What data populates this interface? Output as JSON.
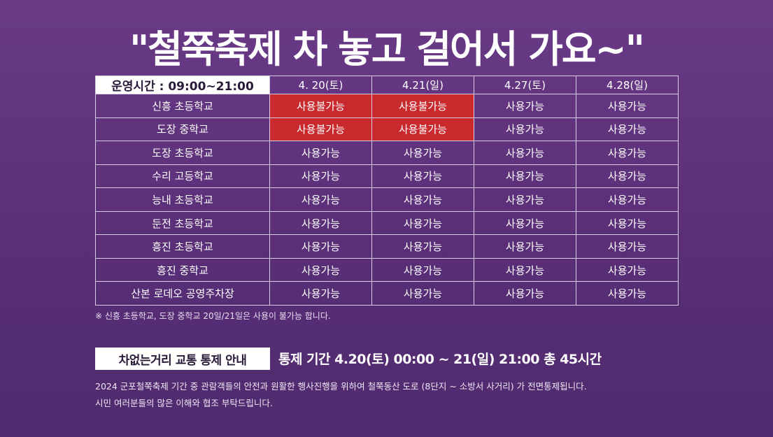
{
  "title": "\"철쭉축제 차 놓고 걸어서 가요~\"",
  "schedule": {
    "corner_label": "운영시간 : 09:00~21:00",
    "dates": [
      "4. 20(토)",
      "4.21(일)",
      "4.27(토)",
      "4.28(일)"
    ],
    "rows": [
      {
        "place": "신흥 초등학교",
        "status": [
          "사용불가능",
          "사용불가능",
          "사용가능",
          "사용가능"
        ]
      },
      {
        "place": "도장 중학교",
        "status": [
          "사용불가능",
          "사용불가능",
          "사용가능",
          "사용가능"
        ]
      },
      {
        "place": "도장 초등학교",
        "status": [
          "사용가능",
          "사용가능",
          "사용가능",
          "사용가능"
        ]
      },
      {
        "place": "수리 고등학교",
        "status": [
          "사용가능",
          "사용가능",
          "사용가능",
          "사용가능"
        ]
      },
      {
        "place": "능내 초등학교",
        "status": [
          "사용가능",
          "사용가능",
          "사용가능",
          "사용가능"
        ]
      },
      {
        "place": "둔전 초등학교",
        "status": [
          "사용가능",
          "사용가능",
          "사용가능",
          "사용가능"
        ]
      },
      {
        "place": "흥진 초등학교",
        "status": [
          "사용가능",
          "사용가능",
          "사용가능",
          "사용가능"
        ]
      },
      {
        "place": "흥진 중학교",
        "status": [
          "사용가능",
          "사용가능",
          "사용가능",
          "사용가능"
        ]
      },
      {
        "place": "산본 로데오 공영주차장",
        "status": [
          "사용가능",
          "사용가능",
          "사용가능",
          "사용가능"
        ]
      }
    ],
    "unavailable_color": "#c82a2e"
  },
  "note": "※ 신흥 초등학교, 도장 중학교 20일/21일은 사용이 불가능 합니다.",
  "traffic": {
    "badge": "차없는거리 교통 통제 안내",
    "period": "통제 기간 4.20(토) 00:00 ~ 21(일) 21:00 총 45시간",
    "desc_line1": "2024 군포철쭉축제 기간 중 관람객들의 안전과 원활한 행사진행을 위하여 철쭉동산 도로 (8단지 ~ 소방서 사거리) 가 전면통제됩니다.",
    "desc_line2": "시민 여러분들의 많은 이해와 협조 부탁드립니다."
  }
}
